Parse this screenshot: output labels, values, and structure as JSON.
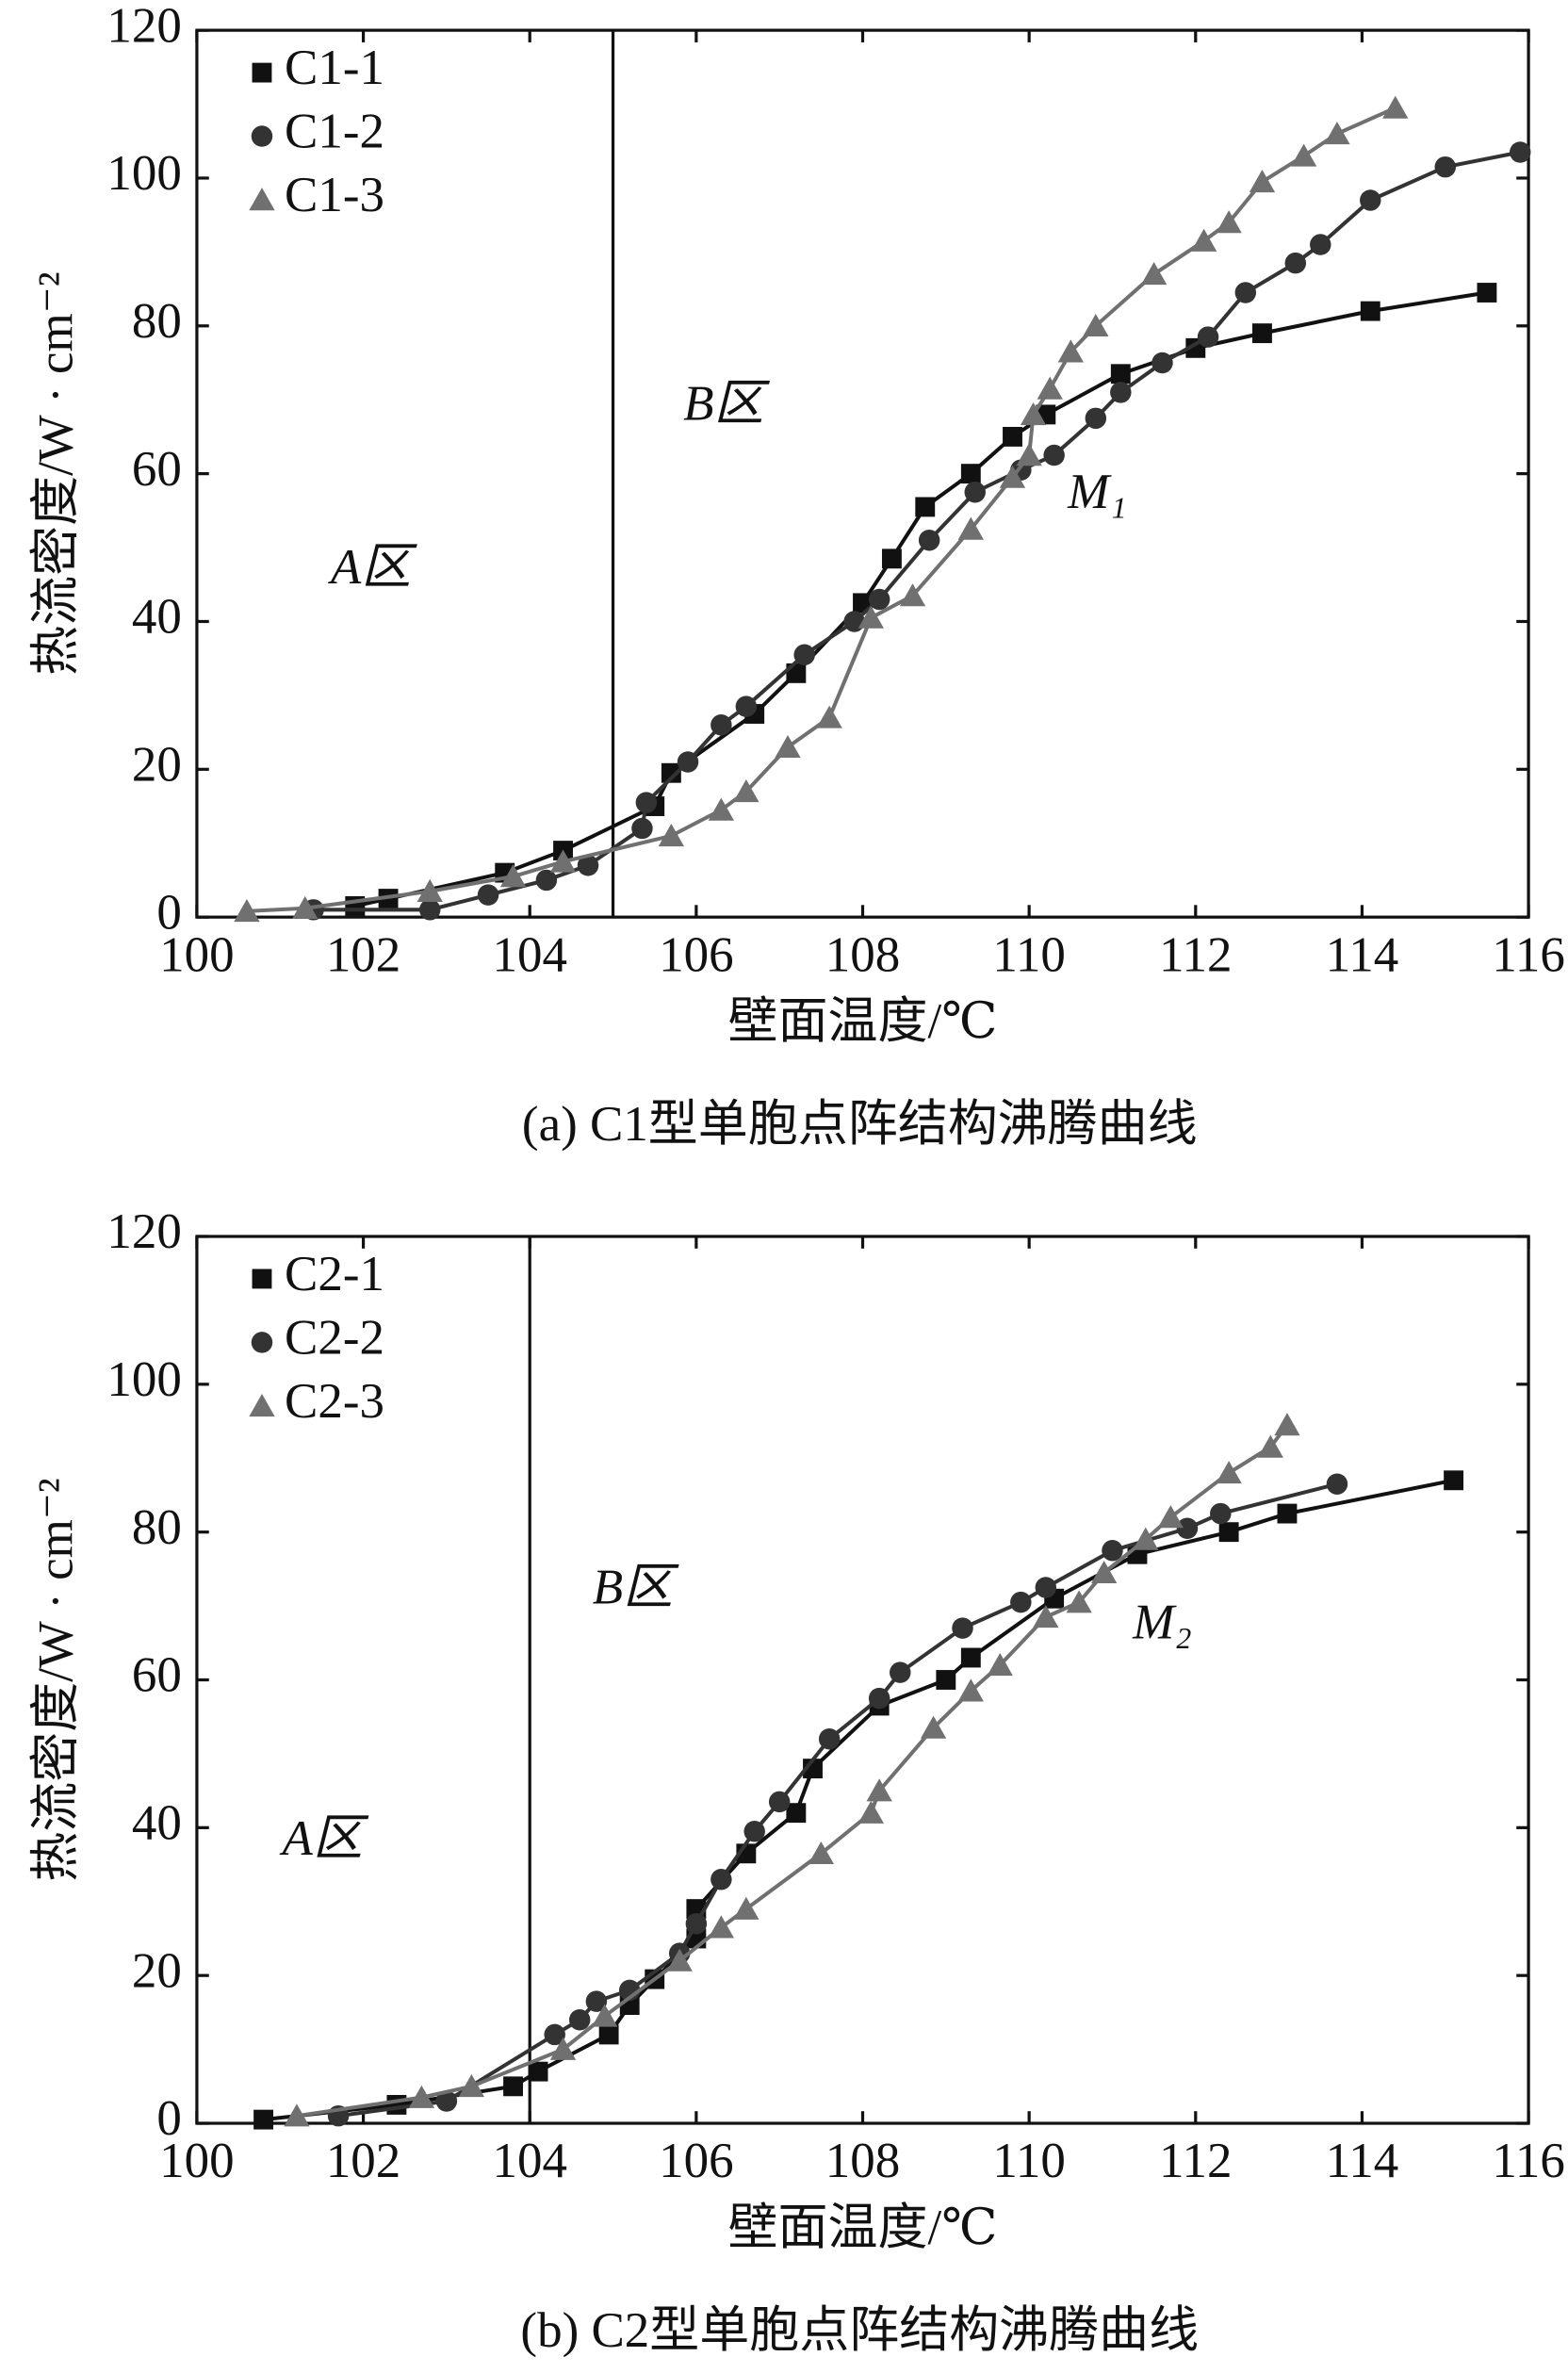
{
  "chart_data": [
    {
      "type": "line",
      "caption": "(a) C1型单胞点阵结构沸腾曲线",
      "xlabel": "壁面温度/℃",
      "ylabel": "热流密度/W · cm⁻²",
      "annotations": [
        "A区",
        "B区",
        "M₁"
      ],
      "divider_x": 105,
      "xlim": [
        100,
        116
      ],
      "xticks": [
        100,
        102,
        104,
        106,
        108,
        110,
        112,
        114,
        116
      ],
      "ylim": [
        0,
        120
      ],
      "yticks": [
        0,
        20,
        40,
        60,
        80,
        100,
        120
      ],
      "legend": "upper left",
      "series": [
        {
          "name": "C1-1",
          "color": "#111111",
          "marker": "square",
          "x": [
            101.9,
            102.3,
            103.7,
            104.4,
            105.5,
            105.7,
            106.7,
            107.2,
            108,
            108.35,
            108.75,
            109.3,
            109.8,
            110.2,
            111.1,
            112,
            112.8,
            114.1,
            115.5
          ],
          "values": [
            1.5,
            2.5,
            6,
            9,
            15,
            19.5,
            27.5,
            33,
            42.5,
            48.5,
            55.5,
            60,
            65,
            68,
            73.5,
            77,
            79,
            82,
            84.5
          ]
        },
        {
          "name": "C1-2",
          "color": "#333333",
          "marker": "circle",
          "x": [
            101.4,
            102.8,
            103.5,
            104.2,
            104.7,
            105.35,
            105.4,
            105.9,
            106.3,
            106.6,
            107.3,
            107.9,
            108.2,
            108.8,
            109.35,
            109.9,
            110.3,
            110.8,
            111.1,
            111.6,
            112.15,
            112.6,
            113.2,
            113.5,
            114.1,
            115,
            115.9
          ],
          "values": [
            1,
            1,
            3,
            5,
            7,
            12,
            15.5,
            21,
            26,
            28.5,
            35.5,
            40,
            43,
            51,
            57.5,
            60.5,
            62.5,
            67.5,
            71,
            75,
            78.5,
            84.5,
            88.5,
            91,
            97,
            101.5,
            103.5
          ]
        },
        {
          "name": "C1-3",
          "color": "#707070",
          "marker": "triangle",
          "x": [
            100.6,
            101.3,
            102.8,
            103.8,
            104.4,
            105.7,
            106.3,
            106.6,
            107.1,
            107.6,
            108.1,
            108.6,
            109.3,
            109.8,
            110,
            110.05,
            110.25,
            110.5,
            110.8,
            111.5,
            112.1,
            112.4,
            112.8,
            113.3,
            113.7,
            114.4
          ],
          "values": [
            0.8,
            1.2,
            3.5,
            5.5,
            7.5,
            11,
            14.5,
            17,
            23,
            27,
            40.5,
            43.5,
            52.5,
            59.5,
            62.5,
            68,
            71.5,
            76.5,
            80,
            87,
            91.5,
            94,
            99.5,
            103,
            106,
            109.5
          ]
        }
      ]
    },
    {
      "type": "line",
      "caption": "(b) C2型单胞点阵结构沸腾曲线",
      "xlabel": "壁面温度/℃",
      "ylabel": "热流密度/W · cm⁻²",
      "annotations": [
        "A区",
        "B区",
        "M₂"
      ],
      "divider_x": 104,
      "xlim": [
        100,
        116
      ],
      "xticks": [
        100,
        102,
        104,
        106,
        108,
        110,
        112,
        114,
        116
      ],
      "ylim": [
        0,
        120
      ],
      "yticks": [
        0,
        20,
        40,
        60,
        80,
        100,
        120
      ],
      "legend": "upper left",
      "series": [
        {
          "name": "C2-1",
          "color": "#111111",
          "marker": "square",
          "x": [
            100.8,
            102.4,
            103.8,
            104.1,
            104.95,
            105.2,
            105.5,
            106,
            106,
            106.6,
            107.2,
            107.4,
            108.2,
            109,
            109.3,
            110.3,
            111.3,
            112.4,
            113.1,
            115.1
          ],
          "values": [
            0.5,
            2.5,
            5,
            7,
            12,
            16,
            19.5,
            25,
            29,
            36.5,
            42,
            48,
            56.5,
            60,
            63,
            71,
            77,
            80,
            82.5,
            87
          ]
        },
        {
          "name": "C2-2",
          "color": "#333333",
          "marker": "circle",
          "x": [
            101.7,
            103,
            104.3,
            104.6,
            104.8,
            105.2,
            105.8,
            106,
            106.3,
            106.7,
            107,
            107.6,
            108.2,
            108.45,
            109.2,
            109.9,
            110.2,
            111,
            111.9,
            112.3,
            113.7
          ],
          "values": [
            1,
            3,
            12,
            14,
            16.5,
            18,
            23,
            27,
            33,
            39.5,
            43.5,
            52,
            57.5,
            61,
            67,
            70.5,
            72.5,
            77.5,
            80.5,
            82.5,
            86.5
          ]
        },
        {
          "name": "C2-3",
          "color": "#707070",
          "marker": "triangle",
          "x": [
            101.2,
            102.7,
            103.3,
            104.4,
            104.9,
            105.8,
            106.3,
            106.6,
            107.5,
            108.1,
            108.2,
            108.85,
            109.3,
            109.65,
            110.2,
            110.6,
            110.9,
            111.4,
            111.7,
            112.4,
            112.9,
            113.1
          ],
          "values": [
            1,
            3.5,
            5,
            10,
            14.5,
            22,
            26.5,
            29,
            36.5,
            42,
            45,
            53.5,
            58.5,
            62,
            68.5,
            70.5,
            74.5,
            79,
            82,
            88,
            91.5,
            94.5
          ]
        }
      ]
    }
  ]
}
